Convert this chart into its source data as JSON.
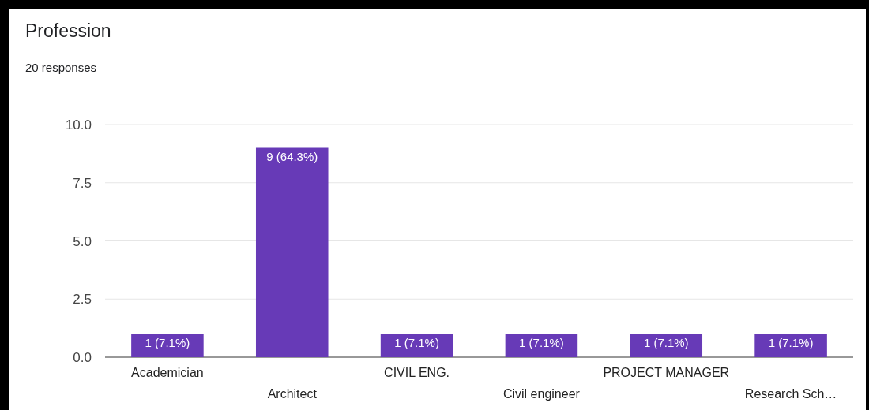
{
  "chart_data": {
    "type": "bar",
    "title": "Profession",
    "subtitle": "20 responses",
    "categories": [
      "Academician",
      "Architect",
      "CIVIL ENG.",
      "Civil engineer",
      "PROJECT MANAGER",
      "Research Sch…"
    ],
    "values": [
      1,
      9,
      1,
      1,
      1,
      1
    ],
    "value_labels": [
      "1 (7.1%)",
      "9 (64.3%)",
      "1 (7.1%)",
      "1 (7.1%)",
      "1 (7.1%)",
      "1 (7.1%)"
    ],
    "color": "#673ab7",
    "ylim": [
      0,
      10
    ],
    "yticks": [
      {
        "value": 0,
        "label": "0.0"
      },
      {
        "value": 2.5,
        "label": "2.5"
      },
      {
        "value": 5,
        "label": "5.0"
      },
      {
        "value": 7.5,
        "label": "7.5"
      },
      {
        "value": 10,
        "label": "10.0"
      }
    ],
    "grid": "y"
  }
}
